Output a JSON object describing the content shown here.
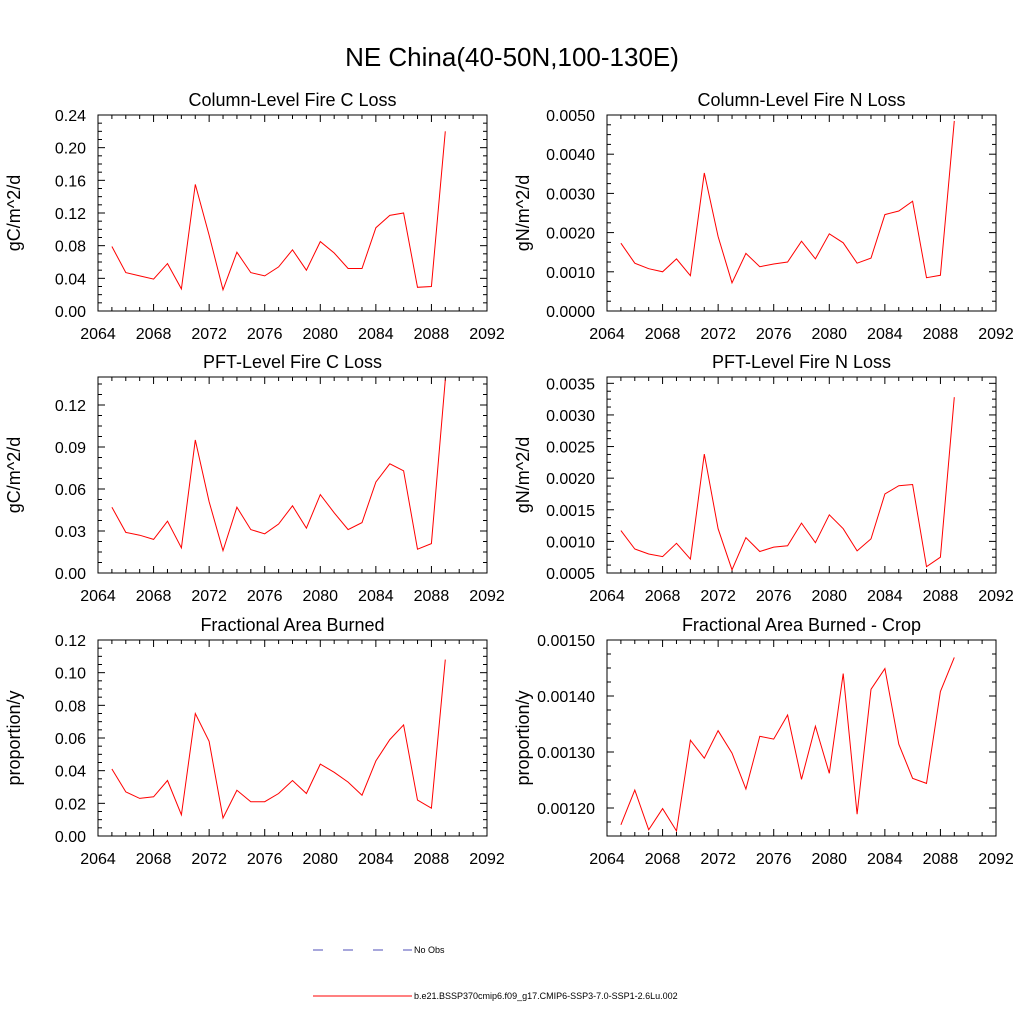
{
  "title": "NE China(40-50N,100-130E)",
  "legend": {
    "items": [
      {
        "label": "No Obs",
        "color": "#4f4fb8",
        "dash": "10,20"
      },
      {
        "label": "b.e21.BSSP370cmip6.f09_g17.CMIP6-SSP3-7.0-SSP1-2.6Lu.002",
        "color": "#ff0000",
        "dash": ""
      }
    ]
  },
  "chart_data": [
    {
      "type": "line",
      "title": "Column-Level Fire C Loss",
      "ylabel": "gC/m^2/d",
      "xlim": [
        2064,
        2092
      ],
      "ylim": [
        0,
        0.24
      ],
      "xticks": [
        "2064",
        "2068",
        "2072",
        "2076",
        "2080",
        "2084",
        "2088",
        "2092"
      ],
      "yticks": [
        "0.00",
        "0.04",
        "0.08",
        "0.12",
        "0.16",
        "0.20",
        "0.24"
      ],
      "x": [
        2065,
        2066,
        2067,
        2068,
        2069,
        2070,
        2071,
        2072,
        2073,
        2074,
        2075,
        2076,
        2077,
        2078,
        2079,
        2080,
        2081,
        2082,
        2083,
        2084,
        2085,
        2086,
        2087,
        2088,
        2089
      ],
      "series": [
        {
          "color": "#ff0000",
          "values": [
            0.079,
            0.047,
            0.043,
            0.039,
            0.058,
            0.027,
            0.155,
            0.093,
            0.026,
            0.072,
            0.047,
            0.043,
            0.054,
            0.075,
            0.05,
            0.085,
            0.071,
            0.052,
            0.052,
            0.102,
            0.117,
            0.12,
            0.029,
            0.03,
            0.22
          ]
        }
      ]
    },
    {
      "type": "line",
      "title": "Column-Level Fire N Loss",
      "ylabel": "gN/m^2/d",
      "xlim": [
        2064,
        2092
      ],
      "ylim": [
        0,
        0.005
      ],
      "xticks": [
        "2064",
        "2068",
        "2072",
        "2076",
        "2080",
        "2084",
        "2088",
        "2092"
      ],
      "yticks": [
        "0.0000",
        "0.0010",
        "0.0020",
        "0.0030",
        "0.0040",
        "0.0050"
      ],
      "x": [
        2065,
        2066,
        2067,
        2068,
        2069,
        2070,
        2071,
        2072,
        2073,
        2074,
        2075,
        2076,
        2077,
        2078,
        2079,
        2080,
        2081,
        2082,
        2083,
        2084,
        2085,
        2086,
        2087,
        2088,
        2089
      ],
      "series": [
        {
          "color": "#ff0000",
          "values": [
            0.00173,
            0.00122,
            0.00108,
            0.001,
            0.00133,
            0.0009,
            0.00352,
            0.0019,
            0.00072,
            0.00147,
            0.00113,
            0.0012,
            0.00125,
            0.00178,
            0.00133,
            0.00197,
            0.00174,
            0.00122,
            0.00135,
            0.00246,
            0.00255,
            0.0028,
            0.00085,
            0.00091,
            0.00485
          ]
        }
      ]
    },
    {
      "type": "line",
      "title": "PFT-Level Fire C Loss",
      "ylabel": "gC/m^2/d",
      "xlim": [
        2064,
        2092
      ],
      "ylim": [
        0,
        0.14
      ],
      "xticks": [
        "2064",
        "2068",
        "2072",
        "2076",
        "2080",
        "2084",
        "2088",
        "2092"
      ],
      "yticks": [
        "0.00",
        "0.03",
        "0.06",
        "0.09",
        "0.12"
      ],
      "x": [
        2065,
        2066,
        2067,
        2068,
        2069,
        2070,
        2071,
        2072,
        2073,
        2074,
        2075,
        2076,
        2077,
        2078,
        2079,
        2080,
        2081,
        2082,
        2083,
        2084,
        2085,
        2086,
        2087,
        2088,
        2089
      ],
      "series": [
        {
          "color": "#ff0000",
          "values": [
            0.047,
            0.029,
            0.027,
            0.024,
            0.037,
            0.018,
            0.095,
            0.051,
            0.016,
            0.047,
            0.031,
            0.028,
            0.035,
            0.048,
            0.032,
            0.056,
            0.043,
            0.031,
            0.036,
            0.065,
            0.078,
            0.073,
            0.017,
            0.021,
            0.138
          ]
        }
      ]
    },
    {
      "type": "line",
      "title": "PFT-Level Fire N Loss",
      "ylabel": "gN/m^2/d",
      "xlim": [
        2064,
        2092
      ],
      "ylim": [
        0.0005,
        0.0036
      ],
      "xticks": [
        "2064",
        "2068",
        "2072",
        "2076",
        "2080",
        "2084",
        "2088",
        "2092"
      ],
      "yticks": [
        "0.0005",
        "0.0010",
        "0.0015",
        "0.0020",
        "0.0025",
        "0.0030",
        "0.0035"
      ],
      "x": [
        2065,
        2066,
        2067,
        2068,
        2069,
        2070,
        2071,
        2072,
        2073,
        2074,
        2075,
        2076,
        2077,
        2078,
        2079,
        2080,
        2081,
        2082,
        2083,
        2084,
        2085,
        2086,
        2087,
        2088,
        2089
      ],
      "series": [
        {
          "color": "#ff0000",
          "values": [
            0.00117,
            0.00088,
            0.0008,
            0.00076,
            0.00097,
            0.00072,
            0.00238,
            0.0012,
            0.00055,
            0.00106,
            0.00084,
            0.00091,
            0.00093,
            0.00129,
            0.00098,
            0.00142,
            0.0012,
            0.00085,
            0.00104,
            0.00175,
            0.00188,
            0.0019,
            0.0006,
            0.00075,
            0.00328
          ]
        }
      ]
    },
    {
      "type": "line",
      "title": "Fractional Area Burned",
      "ylabel": "proportion/y",
      "xlim": [
        2064,
        2092
      ],
      "ylim": [
        0,
        0.12
      ],
      "xticks": [
        "2064",
        "2068",
        "2072",
        "2076",
        "2080",
        "2084",
        "2088",
        "2092"
      ],
      "yticks": [
        "0.00",
        "0.02",
        "0.04",
        "0.06",
        "0.08",
        "0.10",
        "0.12"
      ],
      "x": [
        2065,
        2066,
        2067,
        2068,
        2069,
        2070,
        2071,
        2072,
        2073,
        2074,
        2075,
        2076,
        2077,
        2078,
        2079,
        2080,
        2081,
        2082,
        2083,
        2084,
        2085,
        2086,
        2087,
        2088,
        2089
      ],
      "series": [
        {
          "color": "#ff0000",
          "values": [
            0.041,
            0.027,
            0.023,
            0.024,
            0.034,
            0.013,
            0.075,
            0.058,
            0.011,
            0.028,
            0.021,
            0.021,
            0.026,
            0.034,
            0.026,
            0.044,
            0.039,
            0.033,
            0.025,
            0.046,
            0.059,
            0.068,
            0.022,
            0.017,
            0.108
          ]
        }
      ]
    },
    {
      "type": "line",
      "title": "Fractional Area Burned - Crop",
      "ylabel": "proportion/y",
      "xlim": [
        2064,
        2092
      ],
      "ylim": [
        0.00115,
        0.0015
      ],
      "xticks": [
        "2064",
        "2068",
        "2072",
        "2076",
        "2080",
        "2084",
        "2088",
        "2092"
      ],
      "yticks": [
        "0.00120",
        "0.00130",
        "0.00140",
        "0.00150"
      ],
      "x": [
        2065,
        2066,
        2067,
        2068,
        2069,
        2070,
        2071,
        2072,
        2073,
        2074,
        2075,
        2076,
        2077,
        2078,
        2079,
        2080,
        2081,
        2082,
        2083,
        2084,
        2085,
        2086,
        2087,
        2088,
        2089
      ],
      "series": [
        {
          "color": "#ff0000",
          "values": [
            0.00117,
            0.001232,
            0.001161,
            0.001199,
            0.001159,
            0.001321,
            0.001289,
            0.001338,
            0.001298,
            0.001234,
            0.001328,
            0.001323,
            0.001366,
            0.001251,
            0.001346,
            0.001262,
            0.00144,
            0.001189,
            0.001412,
            0.001449,
            0.001314,
            0.001253,
            0.001244,
            0.001408,
            0.001469
          ]
        }
      ]
    }
  ]
}
